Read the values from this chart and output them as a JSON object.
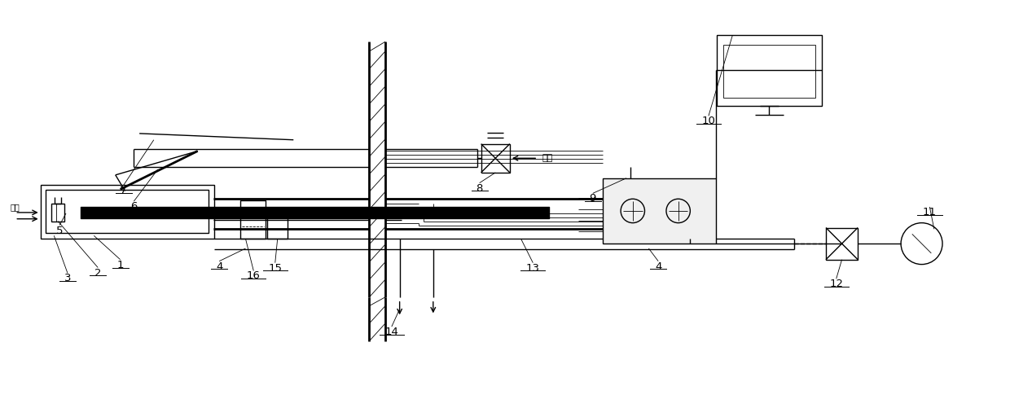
{
  "fig_width": 12.4,
  "fig_height": 5.12,
  "dpi": 100,
  "bg_color": "#ffffff",
  "lc": "#000000",
  "lw": 1.0,
  "lw2": 2.0,
  "lw3": 3.0,
  "lw_thin": 0.6,
  "xlim": [
    0,
    12.4
  ],
  "ylim": [
    0,
    5.12
  ]
}
